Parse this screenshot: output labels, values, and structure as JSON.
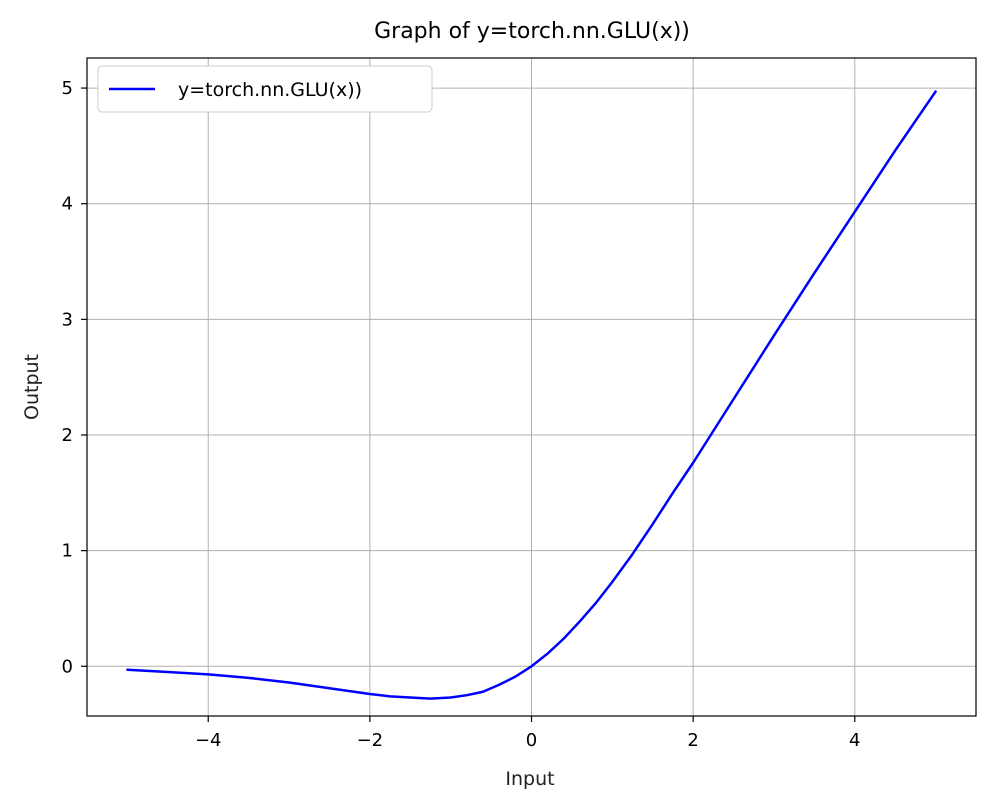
{
  "chart_data": {
    "type": "line",
    "title": "Graph of y=torch.nn.GLU(x))",
    "xlabel": "Input",
    "ylabel": "Output",
    "xlim": [
      -5.5,
      5.5
    ],
    "ylim": [
      -0.43,
      5.26
    ],
    "xticks": [
      -4,
      -2,
      0,
      2,
      4
    ],
    "yticks": [
      0,
      1,
      2,
      3,
      4,
      5
    ],
    "xtick_labels": [
      "−4",
      "−2",
      "0",
      "2",
      "4"
    ],
    "ytick_labels": [
      "0",
      "1",
      "2",
      "3",
      "4",
      "5"
    ],
    "grid": true,
    "legend": {
      "position": "top-left",
      "entries": [
        "y=torch.nn.GLU(x))"
      ]
    },
    "series": [
      {
        "name": "y=torch.nn.GLU(x))",
        "color": "#0000ff",
        "x": [
          -5.0,
          -4.5,
          -4.0,
          -3.5,
          -3.0,
          -2.5,
          -2.0,
          -1.75,
          -1.5,
          -1.25,
          -1.0,
          -0.8,
          -0.6,
          -0.4,
          -0.2,
          0.0,
          0.2,
          0.4,
          0.6,
          0.8,
          1.0,
          1.25,
          1.5,
          1.75,
          2.0,
          2.5,
          3.0,
          3.5,
          4.0,
          4.5,
          5.0
        ],
        "y": [
          -0.03,
          -0.05,
          -0.07,
          -0.1,
          -0.14,
          -0.19,
          -0.24,
          -0.26,
          -0.27,
          -0.28,
          -0.27,
          -0.25,
          -0.22,
          -0.16,
          -0.09,
          0.0,
          0.11,
          0.24,
          0.39,
          0.55,
          0.73,
          0.97,
          1.23,
          1.5,
          1.76,
          2.31,
          2.86,
          3.4,
          3.93,
          4.46,
          4.97
        ]
      }
    ]
  }
}
